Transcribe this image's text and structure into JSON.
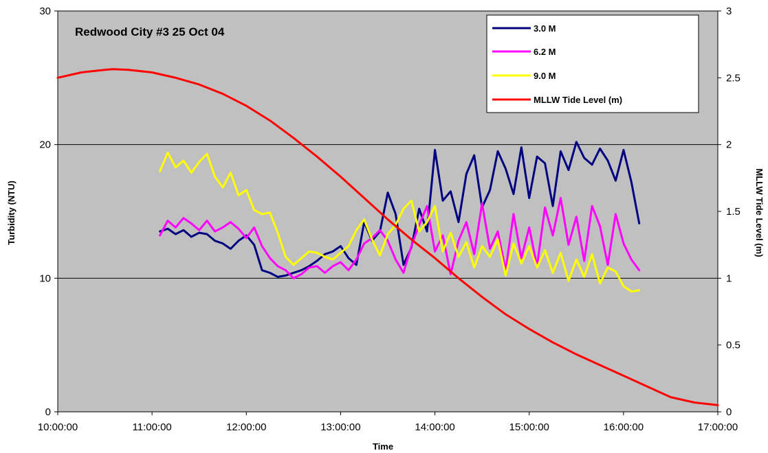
{
  "chart_data": {
    "type": "line",
    "title": "Redwood City  #3 25 Oct 04",
    "xlabel": "Time",
    "ylabel": "Turbidity (NTU)",
    "y2label": "MLLW Tide Level (m)",
    "xlim": [
      "10:00:00",
      "17:00:00"
    ],
    "ylim": [
      0,
      30
    ],
    "y2lim": [
      0,
      3
    ],
    "x_ticks": [
      "10:00:00",
      "11:00:00",
      "12:00:00",
      "13:00:00",
      "14:00:00",
      "15:00:00",
      "16:00:00",
      "17:00:00"
    ],
    "y_ticks": [
      "0",
      "10",
      "20",
      "30"
    ],
    "y2_ticks": [
      "0",
      "0.5",
      "1",
      "1.5",
      "2",
      "2.5",
      "3"
    ],
    "grid": "horizontal major gridlines at 10, 20",
    "legend_position": "top-right",
    "background_color": "#C0C0C0",
    "series": [
      {
        "name": "3.0 M",
        "axis": "left",
        "color": "#000080",
        "x": [
          "11:05",
          "11:10",
          "11:15",
          "11:20",
          "11:25",
          "11:30",
          "11:35",
          "11:40",
          "11:45",
          "11:50",
          "11:55",
          "12:00",
          "12:05",
          "12:10",
          "12:15",
          "12:20",
          "12:25",
          "12:30",
          "12:35",
          "12:40",
          "12:45",
          "12:50",
          "12:55",
          "13:00",
          "13:05",
          "13:10",
          "13:15",
          "13:20",
          "13:25",
          "13:30",
          "13:35",
          "13:40",
          "13:45",
          "13:50",
          "13:55",
          "14:00",
          "14:05",
          "14:10",
          "14:15",
          "14:20",
          "14:25",
          "14:30",
          "14:35",
          "14:40",
          "14:45",
          "14:50",
          "14:55",
          "15:00",
          "15:05",
          "15:10",
          "15:15",
          "15:20",
          "15:25",
          "15:30",
          "15:35",
          "15:40",
          "15:45",
          "15:50",
          "15:55",
          "16:00",
          "16:05",
          "16:10"
        ],
        "values": [
          13.5,
          13.7,
          13.3,
          13.6,
          13.1,
          13.4,
          13.3,
          12.8,
          12.6,
          12.2,
          12.8,
          13.2,
          12.5,
          10.6,
          10.4,
          10.1,
          10.2,
          10.4,
          10.6,
          10.9,
          11.3,
          11.8,
          12.0,
          12.4,
          11.5,
          11.0,
          14.2,
          12.8,
          13.5,
          16.4,
          14.8,
          11.0,
          12.3,
          15.2,
          13.5,
          19.6,
          15.8,
          16.5,
          14.2,
          17.8,
          19.2,
          15.3,
          16.6,
          19.5,
          18.2,
          16.3,
          19.8,
          16.0,
          19.1,
          18.6,
          15.4,
          19.5,
          18.1,
          20.2,
          19.0,
          18.5,
          19.7,
          18.8,
          17.3,
          19.6,
          17.2,
          14.1
        ]
      },
      {
        "name": "6.2 M",
        "axis": "left",
        "color": "#FF00FF",
        "x": [
          "11:05",
          "11:10",
          "11:15",
          "11:20",
          "11:25",
          "11:30",
          "11:35",
          "11:40",
          "11:45",
          "11:50",
          "11:55",
          "12:00",
          "12:05",
          "12:10",
          "12:15",
          "12:20",
          "12:25",
          "12:30",
          "12:35",
          "12:40",
          "12:45",
          "12:50",
          "12:55",
          "13:00",
          "13:05",
          "13:10",
          "13:15",
          "13:20",
          "13:25",
          "13:30",
          "13:35",
          "13:40",
          "13:45",
          "13:50",
          "13:55",
          "14:00",
          "14:05",
          "14:10",
          "14:15",
          "14:20",
          "14:25",
          "14:30",
          "14:35",
          "14:40",
          "14:45",
          "14:50",
          "14:55",
          "15:00",
          "15:05",
          "15:10",
          "15:15",
          "15:20",
          "15:25",
          "15:30",
          "15:35",
          "15:40",
          "15:45",
          "15:50",
          "15:55",
          "16:00",
          "16:05",
          "16:10"
        ],
        "values": [
          13.2,
          14.3,
          13.8,
          14.5,
          14.1,
          13.6,
          14.3,
          13.5,
          13.8,
          14.2,
          13.7,
          13.0,
          13.8,
          12.4,
          11.5,
          10.9,
          10.6,
          10.0,
          10.3,
          10.8,
          10.9,
          10.4,
          10.9,
          11.2,
          10.6,
          11.4,
          12.6,
          13.0,
          13.6,
          12.8,
          11.4,
          10.4,
          12.4,
          14.0,
          15.4,
          12.0,
          13.2,
          10.3,
          12.8,
          14.2,
          11.8,
          15.6,
          12.2,
          13.5,
          10.6,
          14.8,
          11.5,
          13.8,
          10.9,
          15.3,
          13.2,
          16.0,
          12.5,
          14.6,
          11.3,
          15.4,
          13.9,
          11.0,
          14.8,
          12.6,
          11.4,
          10.6
        ]
      },
      {
        "name": "9.0 M",
        "axis": "left",
        "color": "#FFFF00",
        "x": [
          "11:05",
          "11:10",
          "11:15",
          "11:20",
          "11:25",
          "11:30",
          "11:35",
          "11:40",
          "11:45",
          "11:50",
          "11:55",
          "12:00",
          "12:05",
          "12:10",
          "12:15",
          "12:20",
          "12:25",
          "12:30",
          "12:35",
          "12:40",
          "12:45",
          "12:50",
          "12:55",
          "13:00",
          "13:05",
          "13:10",
          "13:15",
          "13:20",
          "13:25",
          "13:30",
          "13:35",
          "13:40",
          "13:45",
          "13:50",
          "13:55",
          "14:00",
          "14:05",
          "14:10",
          "14:15",
          "14:20",
          "14:25",
          "14:30",
          "14:35",
          "14:40",
          "14:45",
          "14:50",
          "14:55",
          "15:00",
          "15:05",
          "15:10",
          "15:15",
          "15:20",
          "15:25",
          "15:30",
          "15:35",
          "15:40",
          "15:45",
          "15:50",
          "15:55",
          "16:00",
          "16:05",
          "16:10"
        ],
        "values": [
          18.0,
          19.4,
          18.3,
          18.8,
          17.9,
          18.7,
          19.3,
          17.6,
          16.8,
          17.9,
          16.2,
          16.6,
          15.1,
          14.8,
          14.9,
          13.4,
          11.6,
          11.0,
          11.5,
          12.0,
          11.9,
          11.6,
          11.4,
          11.9,
          12.4,
          13.6,
          14.4,
          12.9,
          11.7,
          13.3,
          14.0,
          15.2,
          15.8,
          13.5,
          14.2,
          15.4,
          12.0,
          13.4,
          11.6,
          12.7,
          10.8,
          12.4,
          11.6,
          12.9,
          10.2,
          12.6,
          11.1,
          12.4,
          10.8,
          12.1,
          10.4,
          11.9,
          9.8,
          11.4,
          10.1,
          11.8,
          9.6,
          10.8,
          10.5,
          9.4,
          9.0,
          9.1
        ]
      },
      {
        "name": "MLLW Tide Level (m)",
        "axis": "right",
        "color": "#FF0000",
        "x": [
          "10:00",
          "10:15",
          "10:30",
          "10:35",
          "10:45",
          "11:00",
          "11:15",
          "11:30",
          "11:45",
          "12:00",
          "12:15",
          "12:30",
          "12:45",
          "13:00",
          "13:15",
          "13:30",
          "13:45",
          "14:00",
          "14:15",
          "14:30",
          "14:45",
          "15:00",
          "15:15",
          "15:30",
          "15:45",
          "16:00",
          "16:15",
          "16:30",
          "16:45",
          "17:00"
        ],
        "values": [
          2.5,
          2.54,
          2.56,
          2.565,
          2.56,
          2.54,
          2.5,
          2.45,
          2.38,
          2.29,
          2.18,
          2.05,
          1.91,
          1.76,
          1.6,
          1.44,
          1.29,
          1.15,
          1.0,
          0.86,
          0.73,
          0.62,
          0.52,
          0.43,
          0.35,
          0.27,
          0.19,
          0.11,
          0.07,
          0.05
        ]
      }
    ]
  }
}
